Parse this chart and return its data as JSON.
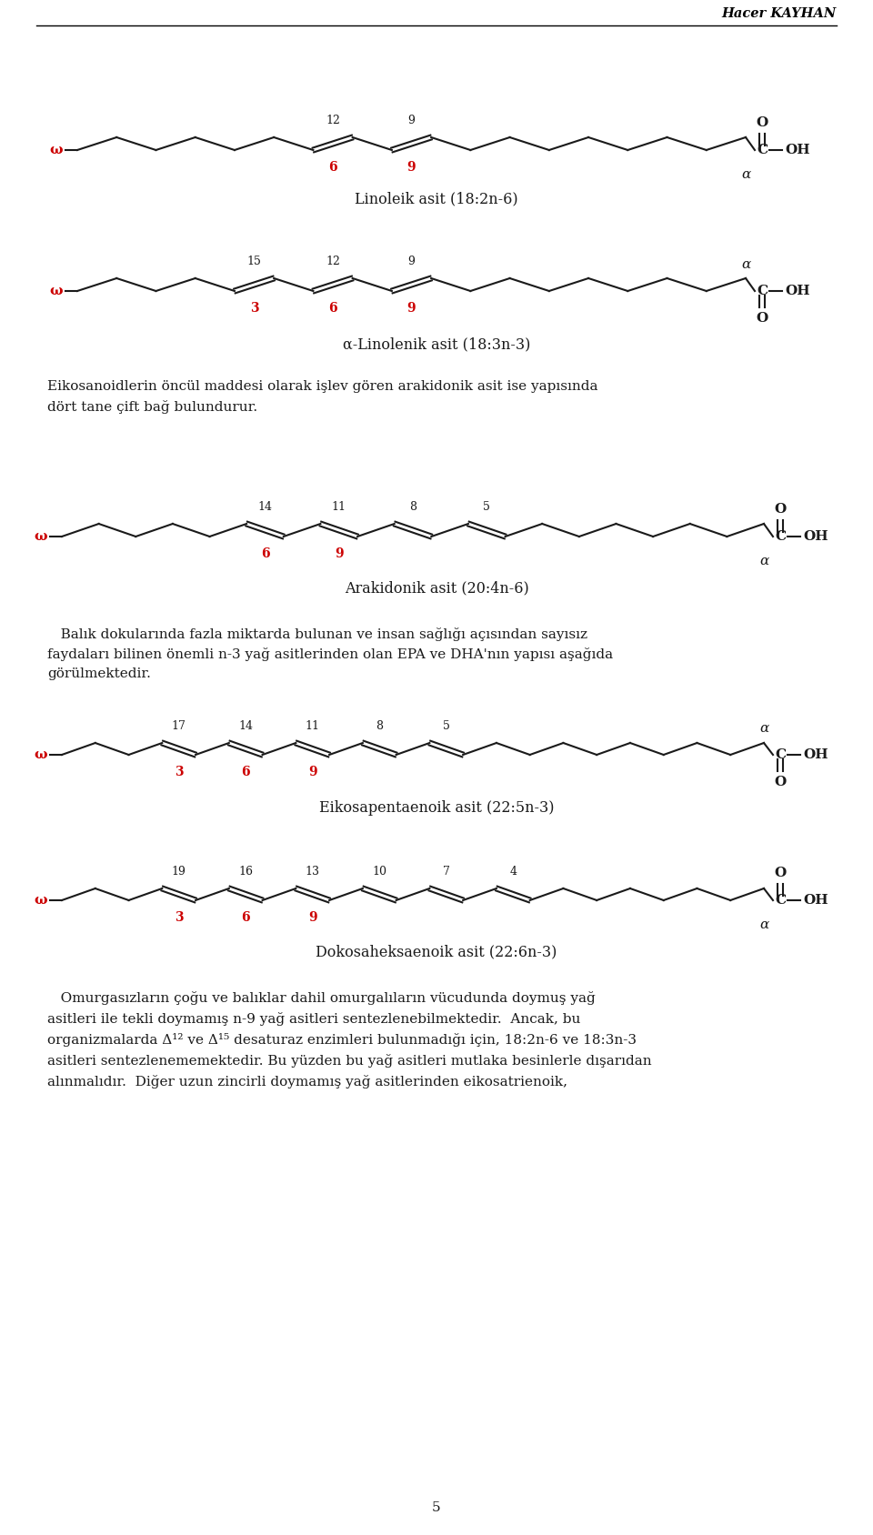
{
  "header_author": "Hacer KAYHAN",
  "bg_color": "#ffffff",
  "red_color": "#cc0000",
  "page_number": "5",
  "body_text": {
    "para1_line1": "Eikosanoidlerin öncül maddesi olarak işlev gören arakidonik asit ise yapısında",
    "para1_line2": "dört tane çift bağ bulundurur.",
    "para2_line1": "Balık dokularında fazla miktarda bulunan ve insan sağlığı açısından sayısız",
    "para2_line2": "faydaları bilinen önemli n-3 yağ asitlerinden olan EPA ve DHA’nın yapısı aşağıda",
    "para2_line3": "görülmektedir.",
    "para3_line1": "   Omurgaسızların çoğu ve balıklar dahil omurgalıların vücudunda doymuş yağ",
    "para3_line2": "asitleri ile tekli doymamış n-9 yağ asitleri sentezlenebilmektedir. Ancak, bu",
    "para3_line3": "organizmalarda Δ¹² ve Δ¹⁵ desaturaz enzimleri bulunmadığı için, 18:2n-6 ve 18:3n-3",
    "para3_line4": "asitleri sentezlenememektedir. Bu yüzden bu yağ asitleri mutlaka besinlerle dışarıdan",
    "para3_line5": "alınmalıdır.  Diğer uzun zincirli doymamış yağ asitlerinden eikosatrienoik,"
  }
}
